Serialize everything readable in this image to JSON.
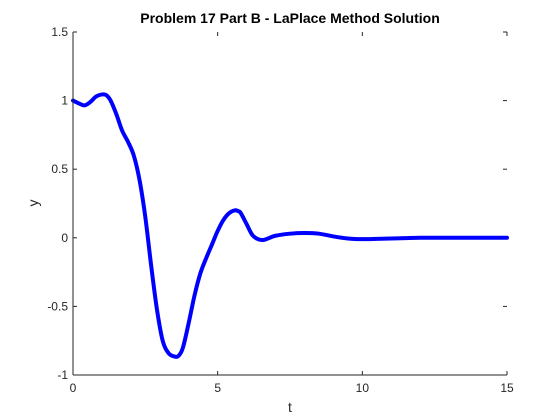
{
  "chart_data": {
    "type": "line",
    "title": "Problem 17 Part B - LaPlace Method Solution",
    "xlabel": "t",
    "ylabel": "y",
    "xlim": [
      0,
      15
    ],
    "ylim": [
      -1,
      1.5
    ],
    "grid": false,
    "x_ticks": [
      0,
      5,
      10,
      15
    ],
    "y_ticks": [
      -1,
      -0.5,
      0,
      0.5,
      1,
      1.5
    ],
    "x_tick_labels": [
      "0",
      "5",
      "10",
      "15"
    ],
    "y_tick_labels": [
      "-1",
      "-0.5",
      "0",
      "0.5",
      "1",
      "1.5"
    ],
    "series": [
      {
        "color": "#0000ff",
        "x": [
          0,
          0.2,
          0.4,
          0.6,
          0.8,
          1.0,
          1.15,
          1.3,
          1.5,
          1.7,
          1.9,
          2.1,
          2.3,
          2.5,
          2.7,
          2.9,
          3.1,
          3.3,
          3.5,
          3.65,
          3.8,
          4.0,
          4.2,
          4.4,
          4.6,
          4.8,
          5.0,
          5.2,
          5.4,
          5.6,
          5.7,
          5.8,
          6.0,
          6.2,
          6.4,
          6.6,
          6.8,
          7.0,
          7.5,
          8.0,
          8.5,
          9.0,
          9.5,
          10.0,
          10.5,
          11.0,
          11.5,
          12.0,
          13.0,
          14.0,
          15.0
        ],
        "y": [
          1.0,
          0.98,
          0.965,
          0.99,
          1.03,
          1.045,
          1.04,
          1.0,
          0.9,
          0.78,
          0.7,
          0.6,
          0.42,
          0.15,
          -0.2,
          -0.52,
          -0.75,
          -0.84,
          -0.865,
          -0.86,
          -0.8,
          -0.62,
          -0.42,
          -0.26,
          -0.15,
          -0.05,
          0.05,
          0.13,
          0.18,
          0.2,
          0.195,
          0.18,
          0.1,
          0.02,
          -0.01,
          -0.015,
          0.0,
          0.015,
          0.03,
          0.035,
          0.03,
          0.01,
          -0.005,
          -0.01,
          -0.008,
          -0.005,
          -0.002,
          0.0,
          0.0,
          0.0,
          0.0
        ]
      }
    ]
  }
}
